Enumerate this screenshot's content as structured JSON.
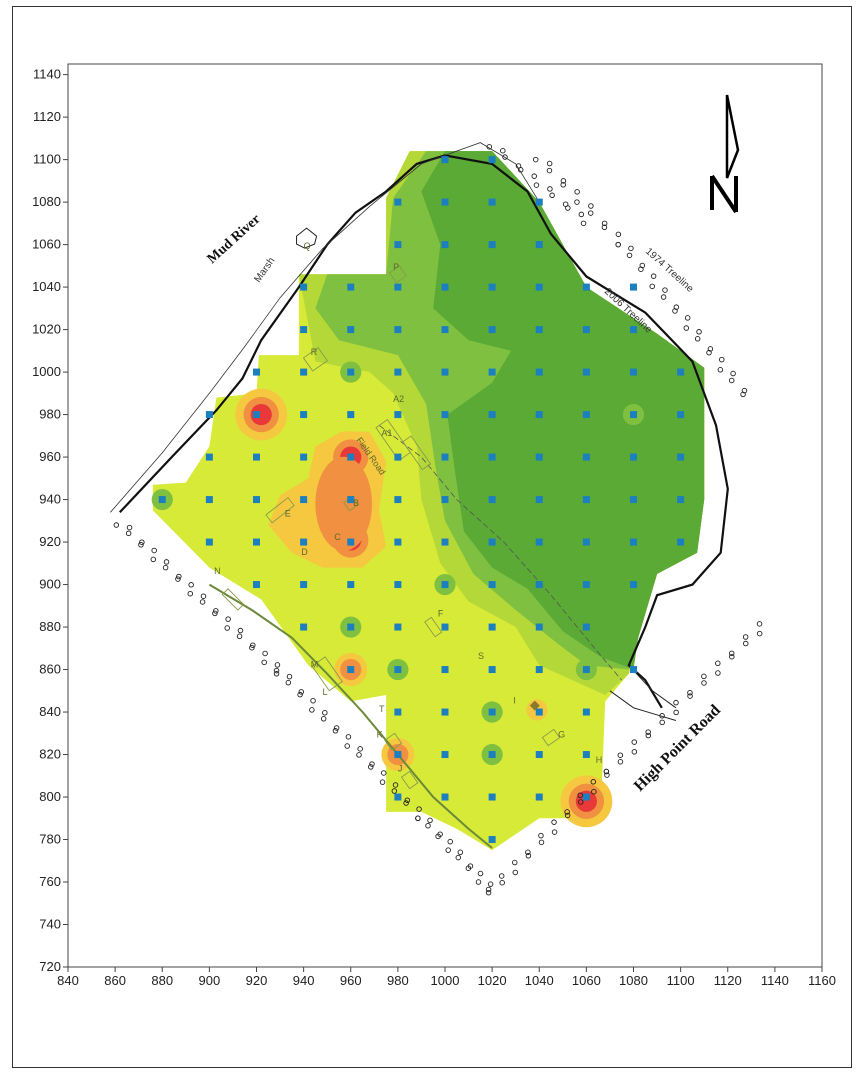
{
  "map": {
    "x_axis": {
      "min": 840,
      "max": 1160,
      "step": 20,
      "ticks": [
        "840",
        "860",
        "880",
        "900",
        "920",
        "940",
        "960",
        "980",
        "1000",
        "1020",
        "1040",
        "1060",
        "1080",
        "1100",
        "1120",
        "1140",
        "1160"
      ]
    },
    "y_axis": {
      "min": 720,
      "max": 1145,
      "step": 20,
      "ticks": [
        "720",
        "740",
        "760",
        "780",
        "800",
        "820",
        "840",
        "860",
        "880",
        "900",
        "920",
        "940",
        "960",
        "980",
        "1000",
        "1020",
        "1040",
        "1060",
        "1080",
        "1100",
        "1120",
        "1140"
      ]
    },
    "labels": {
      "river": "Mud River",
      "marsh": "Marsh",
      "treeline_1974": "1974 Treeline",
      "treeline_2006": "2006 Treeline",
      "road": "High Point Road",
      "field_road": "Field Road",
      "north_symbol": "N"
    },
    "building_labels": [
      {
        "text": "P",
        "x": 978,
        "y": 1048
      },
      {
        "text": "Q",
        "x": 940,
        "y": 1058
      },
      {
        "text": "R",
        "x": 943,
        "y": 1008
      },
      {
        "text": "A1",
        "x": 973,
        "y": 970
      },
      {
        "text": "A2",
        "x": 978,
        "y": 986
      },
      {
        "text": "B",
        "x": 961,
        "y": 937
      },
      {
        "text": "E",
        "x": 932,
        "y": 932
      },
      {
        "text": "C",
        "x": 953,
        "y": 921
      },
      {
        "text": "D",
        "x": 939,
        "y": 914
      },
      {
        "text": "N",
        "x": 902,
        "y": 905
      },
      {
        "text": "F",
        "x": 997,
        "y": 885
      },
      {
        "text": "S",
        "x": 1014,
        "y": 865
      },
      {
        "text": "M",
        "x": 943,
        "y": 861
      },
      {
        "text": "L",
        "x": 948,
        "y": 848
      },
      {
        "text": "T",
        "x": 972,
        "y": 840
      },
      {
        "text": "K",
        "x": 971,
        "y": 828
      },
      {
        "text": "I",
        "x": 1029,
        "y": 844
      },
      {
        "text": "G",
        "x": 1048,
        "y": 828
      },
      {
        "text": "J",
        "x": 980,
        "y": 812
      },
      {
        "text": "H",
        "x": 1064,
        "y": 816
      }
    ],
    "colors": {
      "dark_green": "#5aaa35",
      "mid_green": "#80c040",
      "light_green": "#b4d838",
      "yellow_green": "#d8ea38",
      "yellow": "#ecee44",
      "orange_light": "#f5c840",
      "orange": "#f09040",
      "red": "#e83838",
      "sample_point": "#1c7fc0"
    },
    "sample_points": [
      [
        1000,
        1100
      ],
      [
        1020,
        1100
      ],
      [
        980,
        1080
      ],
      [
        1000,
        1080
      ],
      [
        1020,
        1080
      ],
      [
        1040,
        1080
      ],
      [
        980,
        1060
      ],
      [
        1000,
        1060
      ],
      [
        1020,
        1060
      ],
      [
        1040,
        1060
      ],
      [
        940,
        1040
      ],
      [
        960,
        1040
      ],
      [
        980,
        1040
      ],
      [
        1000,
        1040
      ],
      [
        1020,
        1040
      ],
      [
        1040,
        1040
      ],
      [
        1060,
        1040
      ],
      [
        1080,
        1040
      ],
      [
        940,
        1020
      ],
      [
        960,
        1020
      ],
      [
        980,
        1020
      ],
      [
        1000,
        1020
      ],
      [
        1020,
        1020
      ],
      [
        1040,
        1020
      ],
      [
        1060,
        1020
      ],
      [
        1080,
        1020
      ],
      [
        920,
        1000
      ],
      [
        940,
        1000
      ],
      [
        960,
        1000
      ],
      [
        980,
        1000
      ],
      [
        1000,
        1000
      ],
      [
        1020,
        1000
      ],
      [
        1040,
        1000
      ],
      [
        1060,
        1000
      ],
      [
        1080,
        1000
      ],
      [
        1100,
        1000
      ],
      [
        900,
        980
      ],
      [
        920,
        980
      ],
      [
        940,
        980
      ],
      [
        960,
        980
      ],
      [
        980,
        980
      ],
      [
        1000,
        980
      ],
      [
        1020,
        980
      ],
      [
        1040,
        980
      ],
      [
        1060,
        980
      ],
      [
        1080,
        980
      ],
      [
        1100,
        980
      ],
      [
        900,
        960
      ],
      [
        920,
        960
      ],
      [
        940,
        960
      ],
      [
        960,
        960
      ],
      [
        980,
        960
      ],
      [
        1000,
        960
      ],
      [
        1020,
        960
      ],
      [
        1040,
        960
      ],
      [
        1060,
        960
      ],
      [
        1080,
        960
      ],
      [
        1100,
        960
      ],
      [
        880,
        940
      ],
      [
        900,
        940
      ],
      [
        920,
        940
      ],
      [
        940,
        940
      ],
      [
        960,
        940
      ],
      [
        980,
        940
      ],
      [
        1000,
        940
      ],
      [
        1020,
        940
      ],
      [
        1040,
        940
      ],
      [
        1060,
        940
      ],
      [
        1080,
        940
      ],
      [
        1100,
        940
      ],
      [
        900,
        920
      ],
      [
        920,
        920
      ],
      [
        940,
        920
      ],
      [
        960,
        920
      ],
      [
        980,
        920
      ],
      [
        1000,
        920
      ],
      [
        1020,
        920
      ],
      [
        1040,
        920
      ],
      [
        1060,
        920
      ],
      [
        1080,
        920
      ],
      [
        1100,
        920
      ],
      [
        920,
        900
      ],
      [
        940,
        900
      ],
      [
        960,
        900
      ],
      [
        980,
        900
      ],
      [
        1000,
        900
      ],
      [
        1020,
        900
      ],
      [
        1040,
        900
      ],
      [
        1060,
        900
      ],
      [
        1080,
        900
      ],
      [
        940,
        880
      ],
      [
        960,
        880
      ],
      [
        980,
        880
      ],
      [
        1000,
        880
      ],
      [
        1020,
        880
      ],
      [
        1040,
        880
      ],
      [
        1060,
        880
      ],
      [
        960,
        860
      ],
      [
        980,
        860
      ],
      [
        1000,
        860
      ],
      [
        1020,
        860
      ],
      [
        1040,
        860
      ],
      [
        1060,
        860
      ],
      [
        1080,
        860
      ],
      [
        980,
        840
      ],
      [
        1000,
        840
      ],
      [
        1020,
        840
      ],
      [
        1040,
        840
      ],
      [
        1060,
        840
      ],
      [
        980,
        820
      ],
      [
        1000,
        820
      ],
      [
        1020,
        820
      ],
      [
        1040,
        820
      ],
      [
        1060,
        820
      ],
      [
        980,
        800
      ],
      [
        1000,
        800
      ],
      [
        1020,
        800
      ],
      [
        1040,
        800
      ],
      [
        1060,
        800
      ],
      [
        1020,
        780
      ]
    ],
    "hotspots": [
      {
        "x": 922,
        "y": 980,
        "level": "high"
      },
      {
        "x": 960,
        "y": 960,
        "level": "high"
      },
      {
        "x": 960,
        "y": 921,
        "level": "high"
      },
      {
        "x": 980,
        "y": 820,
        "level": "medium"
      },
      {
        "x": 960,
        "y": 860,
        "level": "medium"
      },
      {
        "x": 1060,
        "y": 798,
        "level": "high"
      },
      {
        "x": 1039,
        "y": 841,
        "level": "low"
      }
    ]
  }
}
